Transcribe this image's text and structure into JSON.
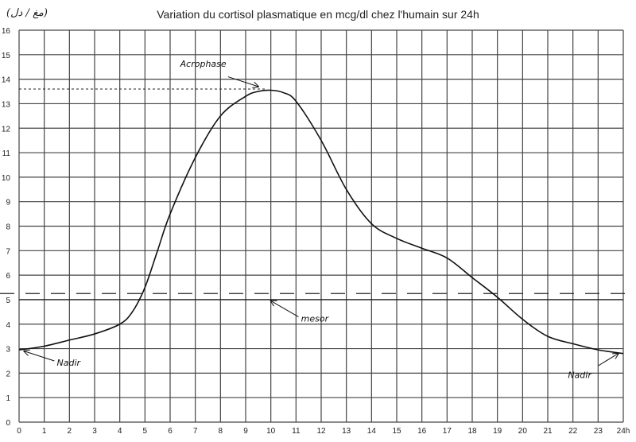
{
  "chart_data": {
    "type": "line",
    "title": "Variation du cortisol plasmatique en mcg/dl chez l'humain sur 24h",
    "ylabel": "(مغ / دل)",
    "xlabel": "",
    "xlim": [
      0,
      24
    ],
    "ylim": [
      0,
      16
    ],
    "x_ticks": [
      "0",
      "1",
      "2",
      "3",
      "4",
      "5",
      "6",
      "7",
      "8",
      "9",
      "10",
      "11",
      "12",
      "13",
      "14",
      "15",
      "16",
      "17",
      "18",
      "19",
      "20",
      "21",
      "22",
      "23",
      "24h"
    ],
    "y_ticks": [
      "0",
      "1",
      "2",
      "3",
      "4",
      "5",
      "6",
      "7",
      "8",
      "9",
      "10",
      "11",
      "12",
      "13",
      "14",
      "15",
      "16"
    ],
    "grid": true,
    "series": [
      {
        "x": [
          0,
          1,
          2,
          3,
          4,
          4.5,
          5,
          5.5,
          6,
          7,
          8,
          9,
          9.5,
          10,
          10.5,
          11,
          12,
          13,
          14,
          15,
          16,
          17,
          18,
          19,
          20,
          21,
          22,
          23,
          24
        ],
        "y": [
          2.95,
          3.1,
          3.35,
          3.6,
          4.0,
          4.5,
          5.5,
          7.0,
          8.5,
          10.8,
          12.5,
          13.3,
          13.5,
          13.55,
          13.45,
          13.1,
          11.5,
          9.5,
          8.1,
          7.5,
          7.1,
          6.7,
          5.9,
          5.1,
          4.2,
          3.5,
          3.2,
          2.95,
          2.8
        ]
      }
    ],
    "reference_lines": {
      "acrophase_level": 13.6,
      "mesor_level": 5.0,
      "dashed_band": 5.25
    },
    "annotations": [
      {
        "text": "Acrophase",
        "x": 9.6,
        "y": 13.6
      },
      {
        "text": "mesor",
        "x": 10,
        "y": 5.0
      },
      {
        "text": "Nadir",
        "x": 0,
        "y": 2.95
      },
      {
        "text": "Nadir",
        "x": 24,
        "y": 2.8
      }
    ]
  }
}
